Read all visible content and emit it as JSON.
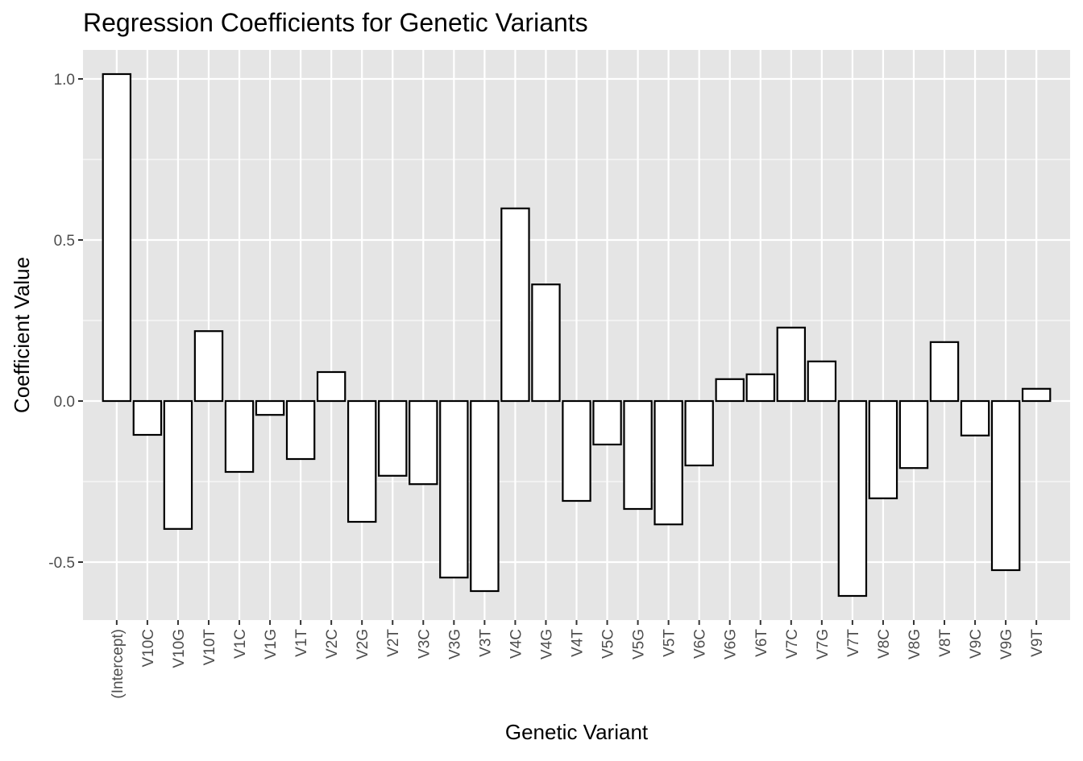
{
  "chart_data": {
    "type": "bar",
    "title": "Regression Coefficients for Genetic Variants",
    "xlabel": "Genetic Variant",
    "ylabel": "Coefficient Value",
    "ylim": [
      -0.68,
      1.09
    ],
    "yticks": [
      -0.5,
      0.0,
      0.5,
      1.0
    ],
    "ytick_labels": [
      "-0.5",
      "0.0",
      "0.5",
      "1.0"
    ],
    "grid": true,
    "panel_background": "#e5e5e5",
    "bar_fill": "#ffffff",
    "bar_stroke": "#000000",
    "categories": [
      "(Intercept)",
      "V10C",
      "V10G",
      "V10T",
      "V1C",
      "V1G",
      "V1T",
      "V2C",
      "V2G",
      "V2T",
      "V3C",
      "V3G",
      "V3T",
      "V4C",
      "V4G",
      "V4T",
      "V5C",
      "V5G",
      "V5T",
      "V6C",
      "V6G",
      "V6T",
      "V7C",
      "V7G",
      "V7T",
      "V8C",
      "V8G",
      "V8T",
      "V9C",
      "V9G",
      "V9T"
    ],
    "values": [
      1.015,
      -0.105,
      -0.397,
      0.217,
      -0.22,
      -0.043,
      -0.18,
      0.09,
      -0.375,
      -0.232,
      -0.258,
      -0.548,
      -0.59,
      0.598,
      0.362,
      -0.31,
      -0.135,
      -0.335,
      -0.383,
      -0.2,
      0.068,
      0.083,
      0.228,
      0.123,
      -0.605,
      -0.302,
      -0.208,
      0.183,
      -0.107,
      -0.525,
      0.038
    ]
  }
}
